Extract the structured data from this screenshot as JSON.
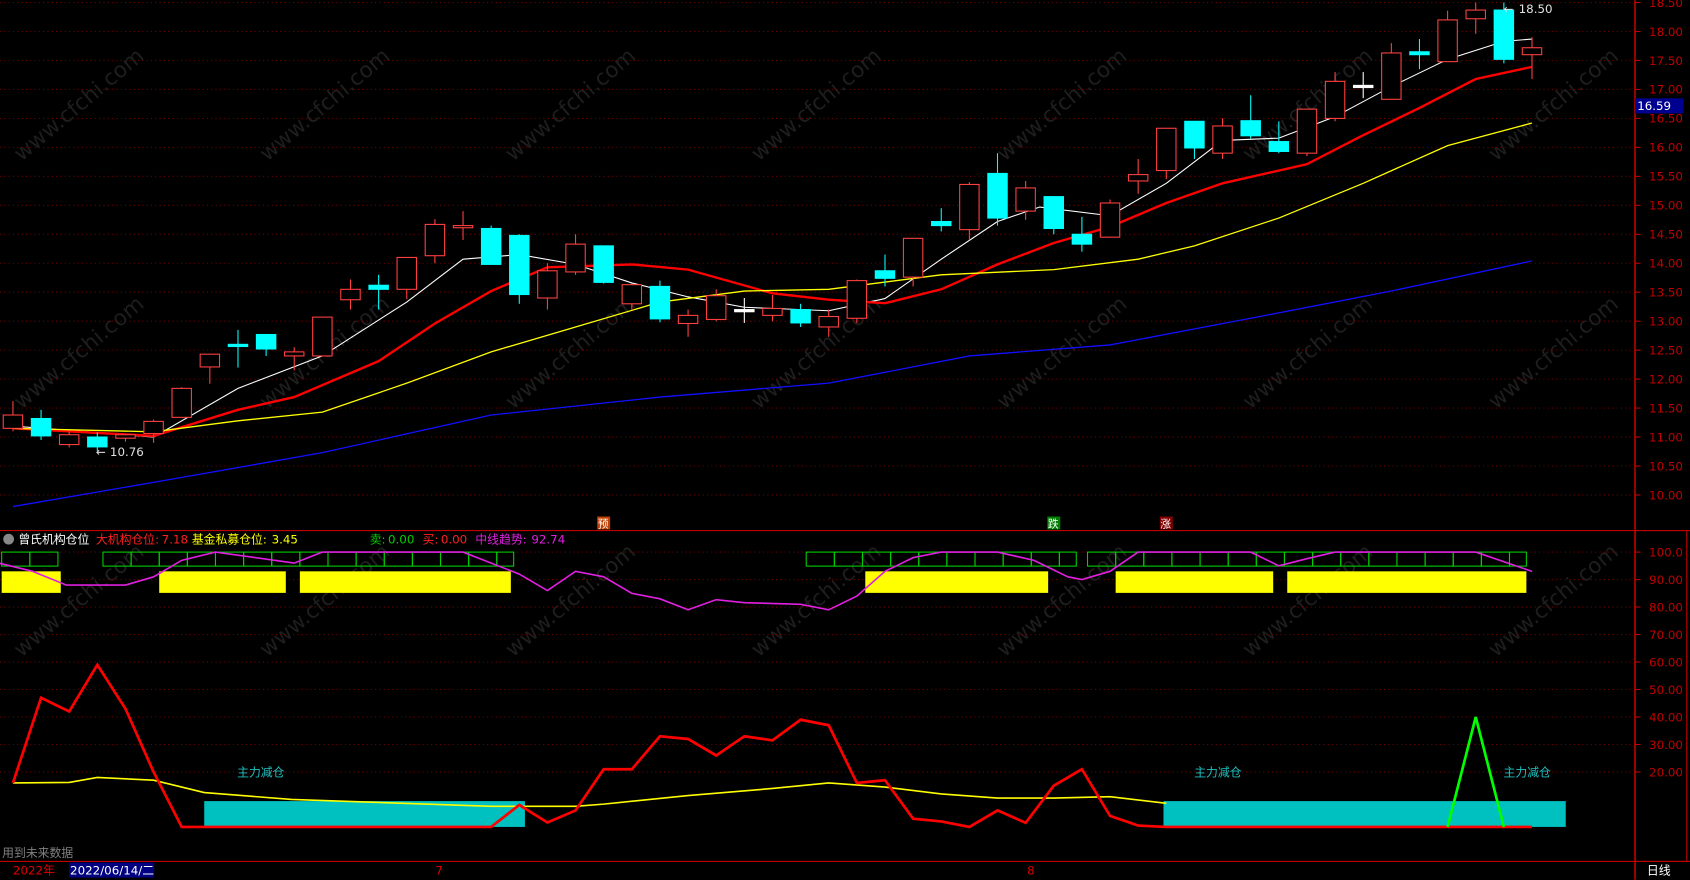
{
  "colors": {
    "up": "#ff4040",
    "down": "#00ffff",
    "cross": "#ffffff",
    "axis": "#c00000",
    "ma5": "#ffffff",
    "ma10": "#ff0000",
    "ma20": "#ffff00",
    "ma60": "#1010ff"
  },
  "price_axis": {
    "ticks": [
      "18.50",
      "18.00",
      "17.50",
      "17.00",
      "16.50",
      "16.00",
      "15.50",
      "15.00",
      "14.50",
      "14.00",
      "13.50",
      "13.00",
      "12.50",
      "12.00",
      "11.50",
      "11.00",
      "10.50",
      "10.00"
    ],
    "current_price": "16.59"
  },
  "annotations": {
    "high_label": "18.50",
    "low_label": "10.76"
  },
  "signals": [
    {
      "text": "预",
      "color": "#c04000",
      "bar": 21
    },
    {
      "text": "跌",
      "color": "#008000",
      "bar": 37
    },
    {
      "text": "涨",
      "color": "#800000",
      "bar": 41
    }
  ],
  "indicator": {
    "name": "曾氏机构仓位",
    "big_label": "大机构仓位:",
    "big_value": "7.18",
    "fund_label": "基金私募仓位:",
    "fund_value": "3.45",
    "sell_label": "卖:",
    "sell_value": "0.00",
    "buy_label": "买:",
    "buy_value": "0.00",
    "trend_label": "中线趋势:",
    "trend_value": "92.74",
    "ticks": [
      "100.0",
      "90.00",
      "80.00",
      "70.00",
      "60.00",
      "50.00",
      "40.00",
      "30.00",
      "20.00"
    ],
    "zone_label": "主力减仓",
    "future_note": "用到未来数据"
  },
  "date_axis": {
    "year": "2022年",
    "cursor_date": "2022/06/14/二",
    "month_7": "7",
    "month_8": "8",
    "period": "日线"
  },
  "chart_data": {
    "type": "candlestick",
    "candles": [
      [
        11.15,
        11.38,
        11.62,
        11.1
      ],
      [
        11.32,
        11.02,
        11.47,
        10.95
      ],
      [
        10.87,
        11.04,
        11.1,
        10.82
      ],
      [
        11.0,
        10.83,
        11.08,
        10.76
      ],
      [
        10.98,
        11.04,
        11.05,
        10.92
      ],
      [
        11.06,
        11.27,
        11.3,
        10.9
      ],
      [
        11.34,
        11.84,
        11.86,
        11.34
      ],
      [
        12.21,
        12.43,
        12.43,
        11.92
      ],
      [
        12.6,
        12.58,
        12.85,
        12.2
      ],
      [
        12.77,
        12.52,
        12.77,
        12.4
      ],
      [
        12.4,
        12.47,
        12.55,
        12.15
      ],
      [
        12.4,
        13.07,
        13.07,
        12.4
      ],
      [
        13.37,
        13.55,
        13.72,
        13.2
      ],
      [
        13.62,
        13.55,
        13.8,
        13.2
      ],
      [
        13.55,
        14.1,
        14.1,
        13.38
      ],
      [
        14.13,
        14.67,
        14.76,
        14.0
      ],
      [
        14.62,
        14.65,
        14.9,
        14.4
      ],
      [
        14.6,
        13.98,
        14.65,
        13.98
      ],
      [
        14.48,
        13.46,
        14.5,
        13.3
      ],
      [
        13.4,
        13.87,
        14.0,
        13.2
      ],
      [
        13.85,
        14.33,
        14.5,
        13.8
      ],
      [
        14.3,
        13.67,
        14.3,
        13.65
      ],
      [
        13.3,
        13.63,
        13.65,
        13.2
      ],
      [
        13.6,
        13.04,
        13.7,
        12.98
      ],
      [
        12.96,
        13.1,
        13.2,
        12.73
      ],
      [
        13.03,
        13.44,
        13.55,
        13.0
      ],
      [
        13.2,
        13.2,
        13.4,
        12.97
      ],
      [
        13.1,
        13.22,
        13.45,
        13.0
      ],
      [
        13.2,
        12.97,
        13.3,
        12.9
      ],
      [
        12.9,
        13.08,
        13.2,
        12.73
      ],
      [
        13.05,
        13.7,
        13.72,
        12.97
      ],
      [
        13.87,
        13.74,
        14.15,
        13.6
      ],
      [
        13.76,
        14.43,
        14.43,
        13.6
      ],
      [
        14.72,
        14.65,
        14.95,
        14.55
      ],
      [
        14.58,
        15.36,
        15.4,
        14.4
      ],
      [
        15.55,
        14.78,
        15.9,
        14.65
      ],
      [
        14.9,
        15.3,
        15.42,
        14.75
      ],
      [
        15.15,
        14.6,
        15.15,
        14.5
      ],
      [
        14.5,
        14.33,
        14.8,
        14.2
      ],
      [
        14.45,
        15.04,
        15.1,
        14.45
      ],
      [
        15.42,
        15.53,
        15.8,
        15.2
      ],
      [
        15.6,
        16.33,
        16.33,
        15.45
      ],
      [
        16.45,
        15.99,
        16.45,
        15.8
      ],
      [
        15.9,
        16.37,
        16.5,
        15.8
      ],
      [
        16.46,
        16.2,
        16.9,
        16.15
      ],
      [
        16.1,
        15.93,
        16.45,
        15.9
      ],
      [
        15.9,
        16.66,
        16.66,
        15.85
      ],
      [
        16.5,
        17.14,
        17.3,
        16.45
      ],
      [
        17.07,
        17.07,
        17.3,
        16.85
      ],
      [
        16.83,
        17.63,
        17.8,
        16.83
      ],
      [
        17.65,
        17.6,
        17.87,
        17.35
      ],
      [
        17.48,
        18.2,
        18.36,
        17.48
      ],
      [
        18.22,
        18.37,
        18.5,
        17.96
      ],
      [
        18.37,
        17.52,
        18.5,
        17.45
      ],
      [
        17.6,
        17.72,
        17.9,
        17.18
      ]
    ],
    "candle_fields": [
      "open",
      "close",
      "high",
      "low"
    ],
    "ma_lines": {
      "ma5": [
        [
          0,
          11.19
        ],
        [
          5,
          11.0
        ],
        [
          8,
          11.84
        ],
        [
          11,
          12.4
        ],
        [
          14,
          13.33
        ],
        [
          16,
          14.07
        ],
        [
          18,
          14.15
        ],
        [
          20,
          13.98
        ],
        [
          22,
          13.66
        ],
        [
          24,
          13.42
        ],
        [
          26,
          13.24
        ],
        [
          29,
          13.18
        ],
        [
          31,
          13.39
        ],
        [
          33,
          14.07
        ],
        [
          35,
          14.72
        ],
        [
          36.5,
          14.97
        ],
        [
          39,
          14.82
        ],
        [
          41,
          15.38
        ],
        [
          43,
          16.12
        ],
        [
          45,
          16.16
        ],
        [
          47,
          16.53
        ],
        [
          49,
          17.05
        ],
        [
          51,
          17.52
        ],
        [
          53,
          17.83
        ],
        [
          54,
          17.87
        ]
      ],
      "ma10": [
        [
          0,
          11.15
        ],
        [
          5,
          11.02
        ],
        [
          8,
          11.47
        ],
        [
          10,
          11.69
        ],
        [
          13,
          12.31
        ],
        [
          15,
          12.96
        ],
        [
          17,
          13.52
        ],
        [
          19,
          13.93
        ],
        [
          22,
          13.98
        ],
        [
          24,
          13.89
        ],
        [
          27,
          13.48
        ],
        [
          29,
          13.37
        ],
        [
          31,
          13.31
        ],
        [
          33,
          13.55
        ],
        [
          35,
          13.98
        ],
        [
          37,
          14.35
        ],
        [
          39,
          14.63
        ],
        [
          41,
          15.04
        ],
        [
          43,
          15.38
        ],
        [
          46,
          15.71
        ],
        [
          48,
          16.21
        ],
        [
          50,
          16.68
        ],
        [
          52,
          17.18
        ],
        [
          54,
          17.39
        ]
      ],
      "ma20": [
        [
          0,
          11.15
        ],
        [
          5,
          11.09
        ],
        [
          8,
          11.28
        ],
        [
          11,
          11.43
        ],
        [
          14,
          11.93
        ],
        [
          17,
          12.47
        ],
        [
          20,
          12.9
        ],
        [
          23,
          13.33
        ],
        [
          26,
          13.52
        ],
        [
          29,
          13.55
        ],
        [
          33,
          13.8
        ],
        [
          37,
          13.89
        ],
        [
          40,
          14.07
        ],
        [
          42,
          14.3
        ],
        [
          45,
          14.78
        ],
        [
          48,
          15.38
        ],
        [
          51,
          16.03
        ],
        [
          54,
          16.42
        ]
      ],
      "ma60": [
        [
          0,
          9.8
        ],
        [
          5.5,
          10.26
        ],
        [
          11,
          10.73
        ],
        [
          17,
          11.38
        ],
        [
          23,
          11.69
        ],
        [
          29,
          11.93
        ],
        [
          34,
          12.4
        ],
        [
          39,
          12.59
        ],
        [
          44,
          13.05
        ],
        [
          49,
          13.52
        ],
        [
          54,
          14.04
        ]
      ]
    },
    "indicator_series": {
      "trend": [
        [
          -0.5,
          96
        ],
        [
          0.7,
          93
        ],
        [
          1.9,
          88
        ],
        [
          4,
          88
        ],
        [
          5,
          91
        ],
        [
          6,
          97
        ],
        [
          7.2,
          100
        ],
        [
          10,
          96
        ],
        [
          11,
          100
        ],
        [
          16,
          100
        ],
        [
          18,
          92
        ],
        [
          19,
          86
        ],
        [
          20,
          93
        ],
        [
          21,
          91
        ],
        [
          22,
          85
        ],
        [
          23,
          83
        ],
        [
          24,
          79
        ],
        [
          25,
          82.7
        ],
        [
          26,
          81.6
        ],
        [
          28,
          81
        ],
        [
          29,
          79
        ],
        [
          30,
          84
        ],
        [
          31,
          93
        ],
        [
          32,
          98
        ],
        [
          33,
          100
        ],
        [
          35,
          100
        ],
        [
          36.3,
          97
        ],
        [
          37.5,
          91
        ],
        [
          38,
          90
        ],
        [
          39,
          93
        ],
        [
          40,
          100
        ],
        [
          44,
          100
        ],
        [
          45,
          95
        ],
        [
          46,
          97.6
        ],
        [
          47,
          100
        ],
        [
          52,
          100
        ],
        [
          54,
          93
        ]
      ],
      "position_boxes": [
        [
          -0.4,
          1.8
        ],
        [
          3.2,
          17.8
        ],
        [
          28.2,
          37.8
        ],
        [
          38.2,
          53.8
        ]
      ],
      "trend_bars": [
        [
          -0.4,
          1.7
        ],
        [
          5.2,
          9.7
        ],
        [
          10.2,
          17.7
        ],
        [
          30.3,
          36.8
        ],
        [
          39.2,
          44.8
        ],
        [
          45.3,
          53.8
        ]
      ],
      "big_institution": [
        [
          0,
          16
        ],
        [
          1,
          47
        ],
        [
          2,
          42
        ],
        [
          3,
          59
        ],
        [
          4,
          43
        ],
        [
          5,
          20
        ],
        [
          6,
          0
        ],
        [
          17,
          0
        ],
        [
          18,
          8
        ],
        [
          19,
          1.6
        ],
        [
          20,
          6
        ],
        [
          21,
          21
        ],
        [
          22,
          21
        ],
        [
          23,
          33
        ],
        [
          24,
          32
        ],
        [
          25,
          26
        ],
        [
          26,
          33
        ],
        [
          27,
          31.5
        ],
        [
          28,
          39
        ],
        [
          29,
          37
        ],
        [
          30,
          16
        ],
        [
          31,
          17
        ],
        [
          32,
          3
        ],
        [
          33,
          2
        ],
        [
          34,
          0
        ],
        [
          35,
          6
        ],
        [
          36,
          1.5
        ],
        [
          37,
          15
        ],
        [
          38,
          21
        ],
        [
          39,
          4
        ],
        [
          40,
          0.5
        ],
        [
          41,
          0
        ],
        [
          54,
          0
        ]
      ],
      "fund": [
        [
          0,
          16
        ],
        [
          2,
          16.2
        ],
        [
          3,
          18
        ],
        [
          5,
          17
        ],
        [
          6.8,
          12.5
        ],
        [
          9.9,
          10
        ],
        [
          17,
          7.5
        ],
        [
          20,
          7.5
        ],
        [
          21,
          8.3
        ],
        [
          24,
          11.4
        ],
        [
          27,
          14
        ],
        [
          29,
          16
        ],
        [
          31,
          14.5
        ],
        [
          33,
          12
        ],
        [
          35,
          10.5
        ],
        [
          37,
          10.5
        ],
        [
          39,
          11
        ],
        [
          41,
          8.6
        ]
      ],
      "sell_signal": [
        [
          51,
          0
        ],
        [
          52,
          40
        ],
        [
          53,
          0
        ]
      ],
      "reduce_zones": [
        [
          6.8,
          18.2
        ],
        [
          40.9,
          55.2
        ]
      ],
      "reduce_level": 9.4,
      "ylim": [
        0,
        100
      ]
    },
    "ylim": [
      10.0,
      18.5
    ]
  }
}
